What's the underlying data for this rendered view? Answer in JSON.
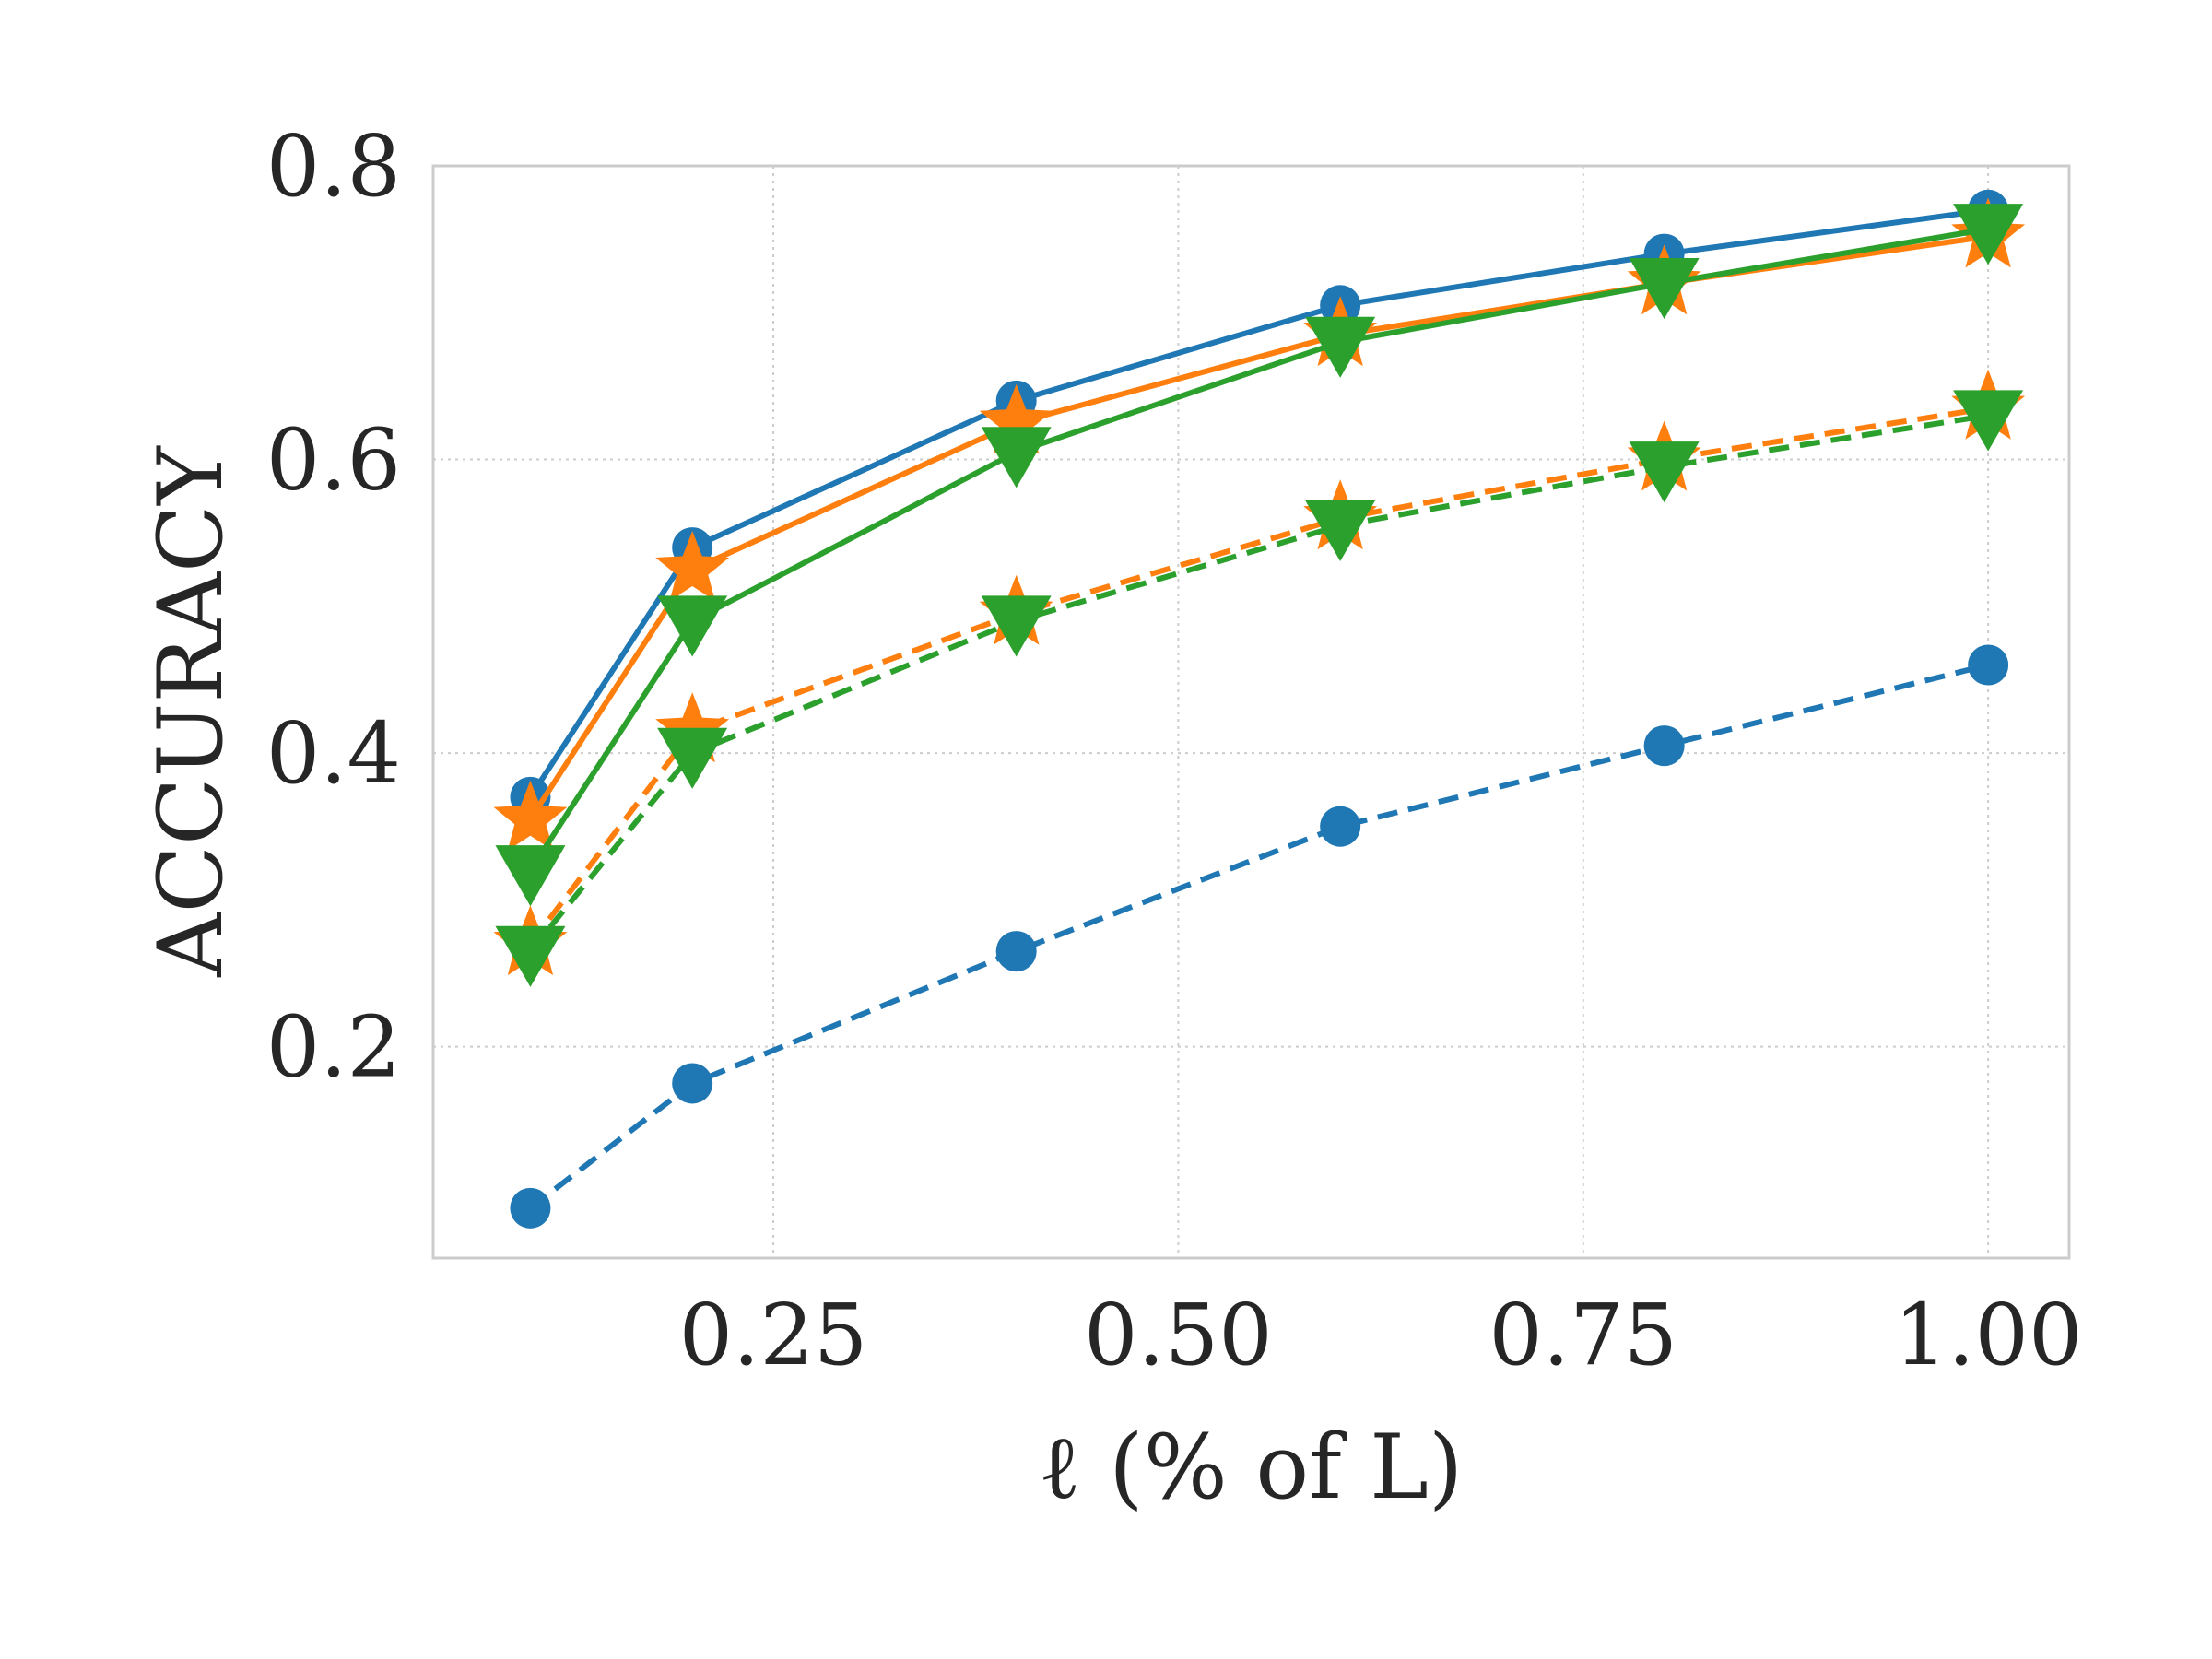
{
  "chart_data": {
    "type": "line",
    "xlabel": "ℓ (% of L)",
    "ylabel": "ACCURACY",
    "xlim": [
      0.04,
      1.05
    ],
    "ylim": [
      0.056,
      0.8
    ],
    "grid": true,
    "x": [
      0.1,
      0.2,
      0.4,
      0.6,
      0.8,
      1.0
    ],
    "xticks": [
      "0.25",
      "0.50",
      "0.75",
      "1.00"
    ],
    "xtick_values": [
      0.25,
      0.5,
      0.75,
      1.0
    ],
    "yticks": [
      "0.2",
      "0.4",
      "0.6",
      "0.8"
    ],
    "ytick_values": [
      0.2,
      0.4,
      0.6,
      0.8
    ],
    "series": [
      {
        "color": "#1f77b4",
        "style": "solid",
        "marker": "circle",
        "values": [
          0.37,
          0.54,
          0.64,
          0.705,
          0.74,
          0.77
        ]
      },
      {
        "color": "#ff7f0e",
        "style": "solid",
        "marker": "star",
        "values": [
          0.355,
          0.525,
          0.625,
          0.685,
          0.72,
          0.752
        ]
      },
      {
        "color": "#2ca02c",
        "style": "solid",
        "marker": "triangle",
        "values": [
          0.32,
          0.49,
          0.605,
          0.68,
          0.72,
          0.757
        ]
      },
      {
        "color": "#ff7f0e",
        "style": "dashed",
        "marker": "star",
        "values": [
          0.27,
          0.415,
          0.495,
          0.56,
          0.6,
          0.635
        ]
      },
      {
        "color": "#2ca02c",
        "style": "dashed",
        "marker": "triangle",
        "values": [
          0.265,
          0.4,
          0.49,
          0.555,
          0.595,
          0.63
        ]
      },
      {
        "color": "#1f77b4",
        "style": "dashed",
        "marker": "circle",
        "values": [
          0.09,
          0.175,
          0.265,
          0.35,
          0.405,
          0.46
        ]
      }
    ]
  }
}
